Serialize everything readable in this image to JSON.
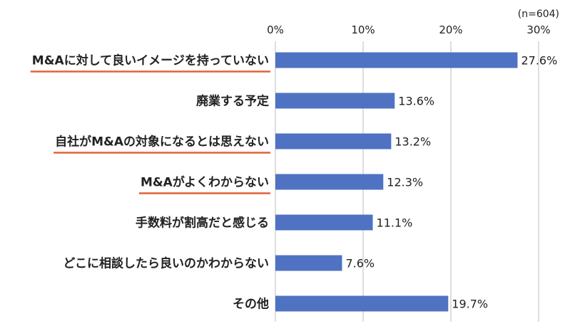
{
  "chart_data": {
    "type": "bar",
    "orientation": "horizontal",
    "note": "(n=604)",
    "categories": [
      "M&Aに対して良いイメージを持っていない",
      "廃業する予定",
      "自社がM&Aの対象になるとは思えない",
      "M&Aがよくわからない",
      "手数料が割高だと感じる",
      "どこに相談したら良いのかわからない",
      "その他"
    ],
    "values": [
      27.6,
      13.6,
      13.2,
      12.3,
      11.1,
      7.6,
      19.7
    ],
    "value_labels": [
      "27.6%",
      "13.6%",
      "13.2%",
      "12.3%",
      "11.1%",
      "7.6%",
      "19.7%"
    ],
    "underlined_categories": [
      0,
      2,
      3
    ],
    "xlim": [
      0,
      30
    ],
    "ticks": [
      0,
      10,
      20,
      30
    ],
    "tick_labels": [
      "0%",
      "10%",
      "20%",
      "30%"
    ],
    "grid": true,
    "bar_color": "#4f73c2",
    "underline_color": "#e0623a",
    "grid_color": "#bdbdbd"
  }
}
